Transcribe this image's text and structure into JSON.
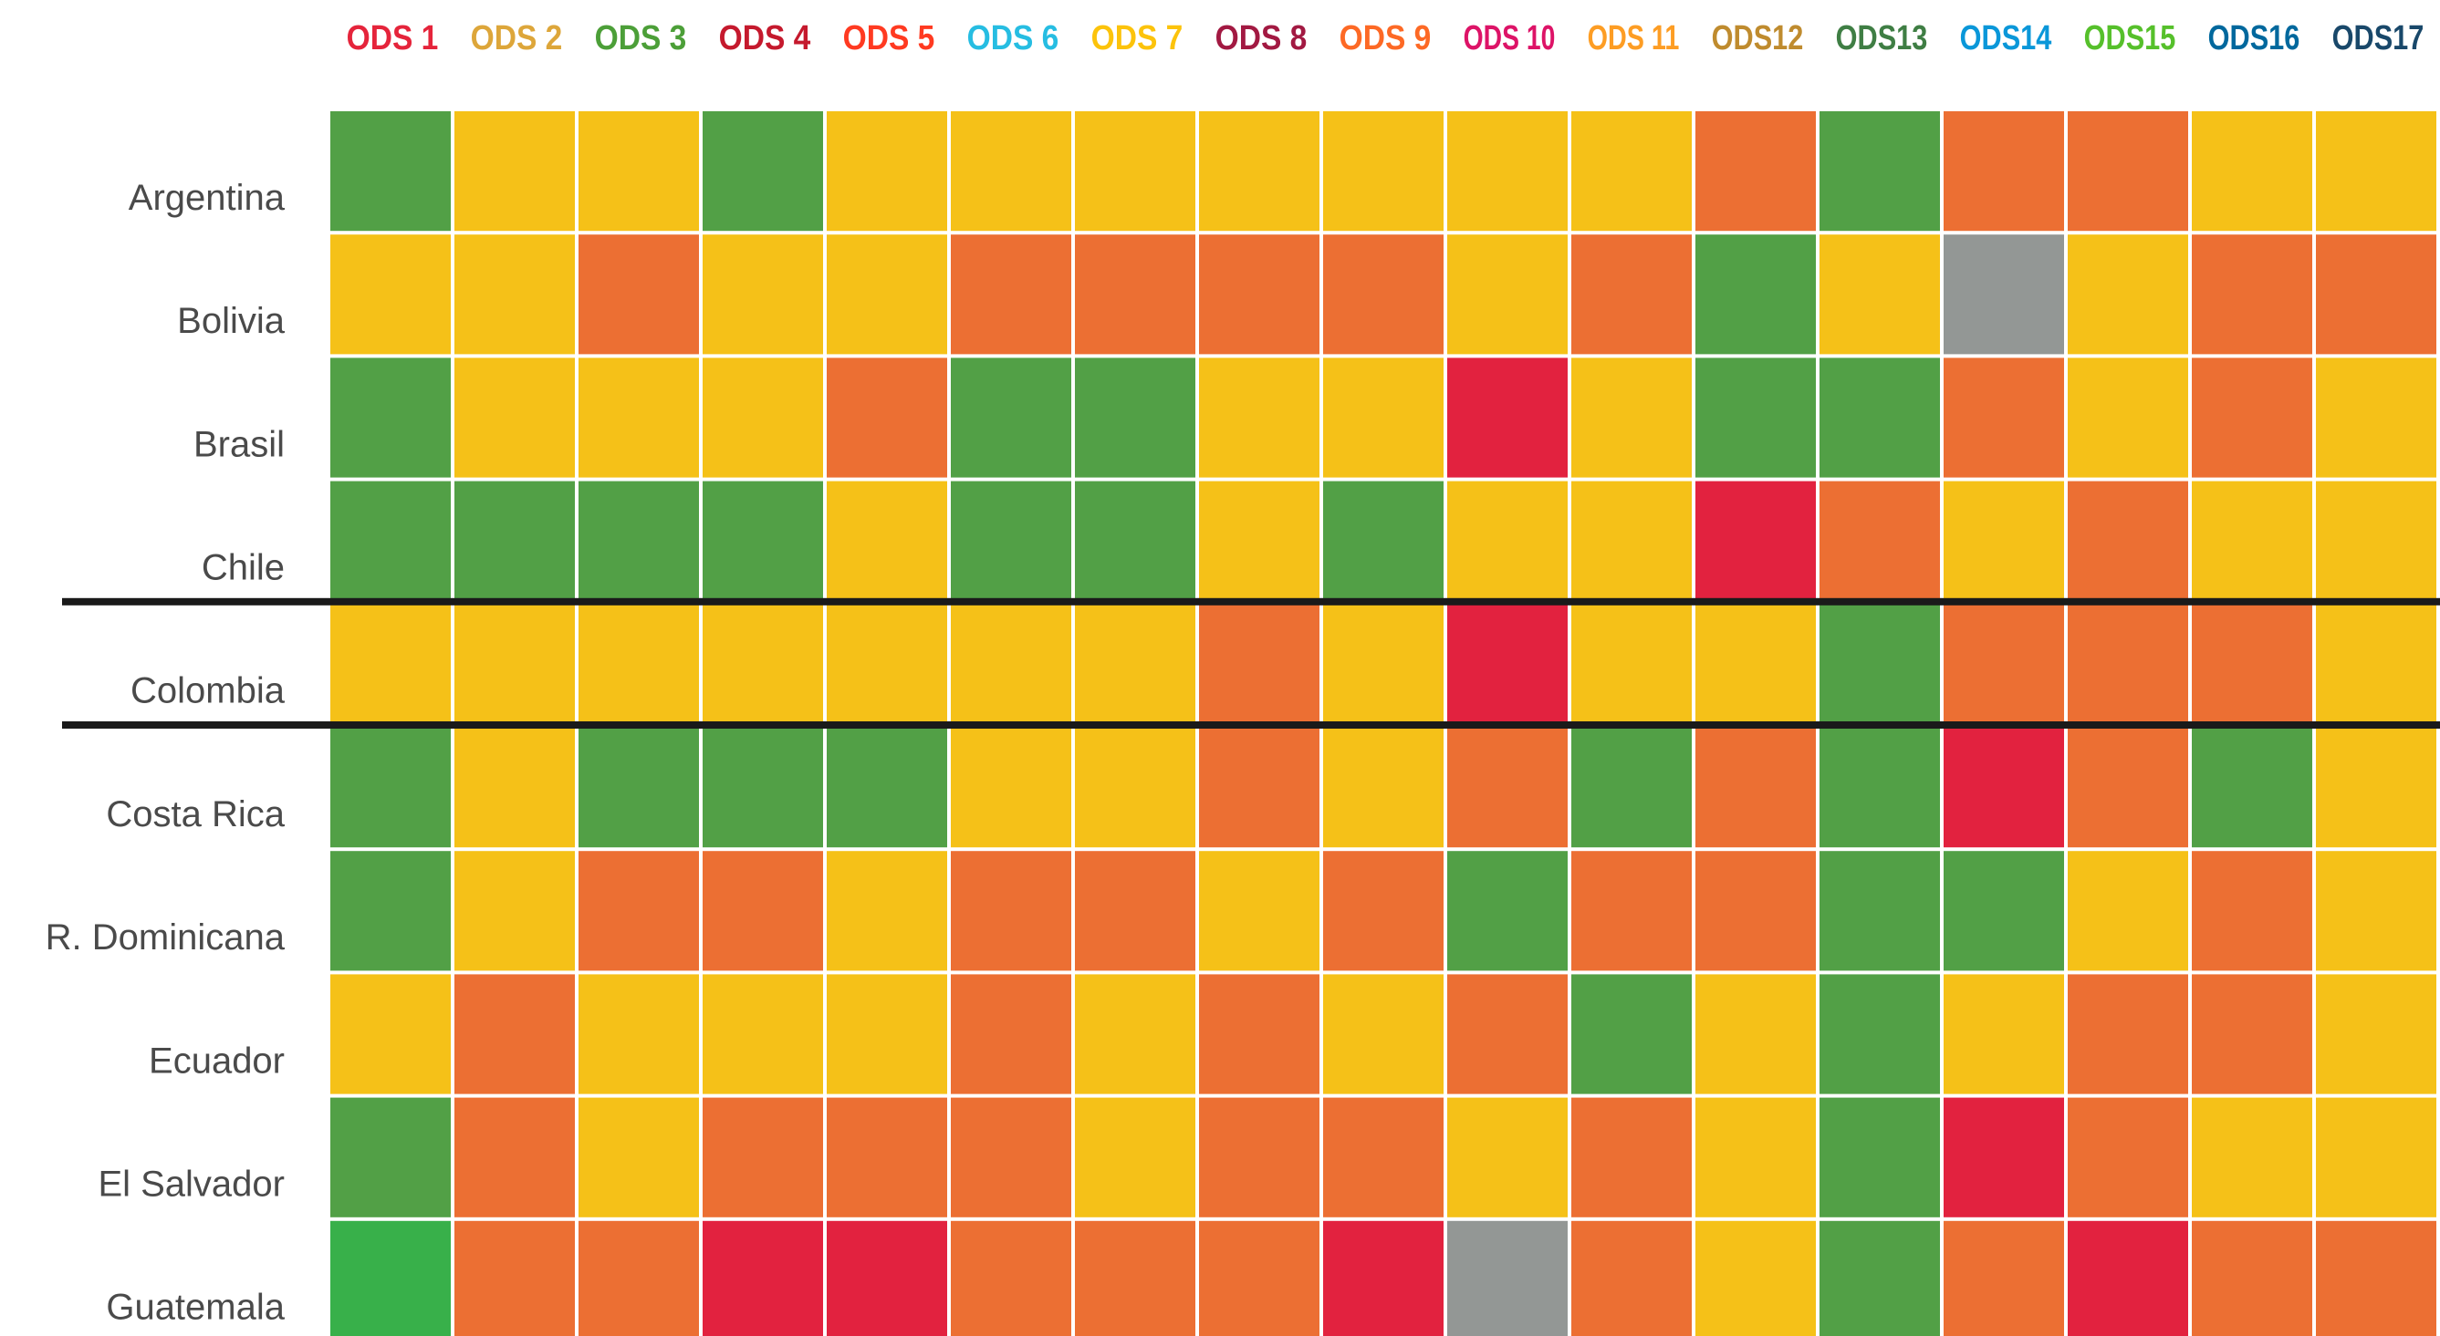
{
  "chart_data": {
    "type": "heatmap",
    "columns": [
      "ODS 1",
      "ODS 2",
      "ODS 3",
      "ODS 4",
      "ODS 5",
      "ODS 6",
      "ODS 7",
      "ODS 8",
      "ODS 9",
      "ODS 10",
      "ODS 11",
      "ODS12",
      "ODS13",
      "ODS14",
      "ODS15",
      "ODS16",
      "ODS17"
    ],
    "column_colors": [
      "#e5243b",
      "#dda63a",
      "#4c9f38",
      "#c5192d",
      "#ff3a21",
      "#26bde2",
      "#fcc30b",
      "#a21942",
      "#fd6925",
      "#dd1367",
      "#fd9d24",
      "#bf8b2e",
      "#3f7e44",
      "#0a97d9",
      "#56c02b",
      "#00689d",
      "#19486a"
    ],
    "rows": [
      "Argentina",
      "Bolivia",
      "Brasil",
      "Chile",
      "Colombia",
      "Costa Rica",
      "R. Dominicana",
      "Ecuador",
      "El Salvador",
      "Guatemala"
    ],
    "highlight_row": 4,
    "cells": [
      [
        "#52a046",
        "#f5c118",
        "#f5c118",
        "#52a046",
        "#f5c118",
        "#f5c118",
        "#f5c118",
        "#f5c118",
        "#f5c118",
        "#f5c118",
        "#f5c118",
        "#ec6f33",
        "#52a046",
        "#ec6f33",
        "#ec6f33",
        "#f5c118",
        "#f5c118"
      ],
      [
        "#f5c118",
        "#f5c118",
        "#ec6f33",
        "#f5c118",
        "#f5c118",
        "#ec6f33",
        "#ec6f33",
        "#ec6f33",
        "#ec6f33",
        "#f5c118",
        "#ec6f33",
        "#52a046",
        "#f5c118",
        "#939795",
        "#f5c118",
        "#ec6f33",
        "#ec6f33"
      ],
      [
        "#52a046",
        "#f5c118",
        "#f5c118",
        "#f5c118",
        "#ec6f33",
        "#52a046",
        "#52a046",
        "#f5c118",
        "#f5c118",
        "#e2223f",
        "#f5c118",
        "#52a046",
        "#52a046",
        "#ec6f33",
        "#f5c118",
        "#ec6f33",
        "#f5c118"
      ],
      [
        "#52a046",
        "#52a046",
        "#52a046",
        "#52a046",
        "#f5c118",
        "#52a046",
        "#52a046",
        "#f5c118",
        "#52a046",
        "#f5c118",
        "#f5c118",
        "#e2223f",
        "#ec6f33",
        "#f5c118",
        "#ec6f33",
        "#f5c118",
        "#f5c118"
      ],
      [
        "#f5c118",
        "#f5c118",
        "#f5c118",
        "#f5c118",
        "#f5c118",
        "#f5c118",
        "#f5c118",
        "#ec6f33",
        "#f5c118",
        "#e2223f",
        "#f5c118",
        "#f5c118",
        "#52a046",
        "#ec6f33",
        "#ec6f33",
        "#ec6f33",
        "#f5c118"
      ],
      [
        "#52a046",
        "#f5c118",
        "#52a046",
        "#52a046",
        "#52a046",
        "#f5c118",
        "#f5c118",
        "#ec6f33",
        "#f5c118",
        "#ec6f33",
        "#52a046",
        "#ec6f33",
        "#52a046",
        "#e2223f",
        "#ec6f33",
        "#52a046",
        "#f5c118"
      ],
      [
        "#52a046",
        "#f5c118",
        "#ec6f33",
        "#ec6f33",
        "#f5c118",
        "#ec6f33",
        "#ec6f33",
        "#f5c118",
        "#ec6f33",
        "#52a046",
        "#ec6f33",
        "#ec6f33",
        "#52a046",
        "#52a046",
        "#f5c118",
        "#ec6f33",
        "#f5c118"
      ],
      [
        "#f5c118",
        "#ec6f33",
        "#f5c118",
        "#f5c118",
        "#f5c118",
        "#ec6f33",
        "#f5c118",
        "#ec6f33",
        "#f5c118",
        "#ec6f33",
        "#52a046",
        "#f5c118",
        "#52a046",
        "#f5c118",
        "#ec6f33",
        "#ec6f33",
        "#f5c118"
      ],
      [
        "#52a046",
        "#ec6f33",
        "#f5c118",
        "#ec6f33",
        "#ec6f33",
        "#ec6f33",
        "#f5c118",
        "#ec6f33",
        "#ec6f33",
        "#f5c118",
        "#ec6f33",
        "#f5c118",
        "#52a046",
        "#e2223f",
        "#ec6f33",
        "#f5c118",
        "#f5c118"
      ],
      [
        "#38b04a",
        "#ec6f33",
        "#ec6f33",
        "#e2223f",
        "#e2223f",
        "#ec6f33",
        "#ec6f33",
        "#ec6f33",
        "#e2223f",
        "#939795",
        "#ec6f33",
        "#f5c118",
        "#52a046",
        "#ec6f33",
        "#e2223f",
        "#ec6f33",
        "#ec6f33"
      ]
    ]
  }
}
